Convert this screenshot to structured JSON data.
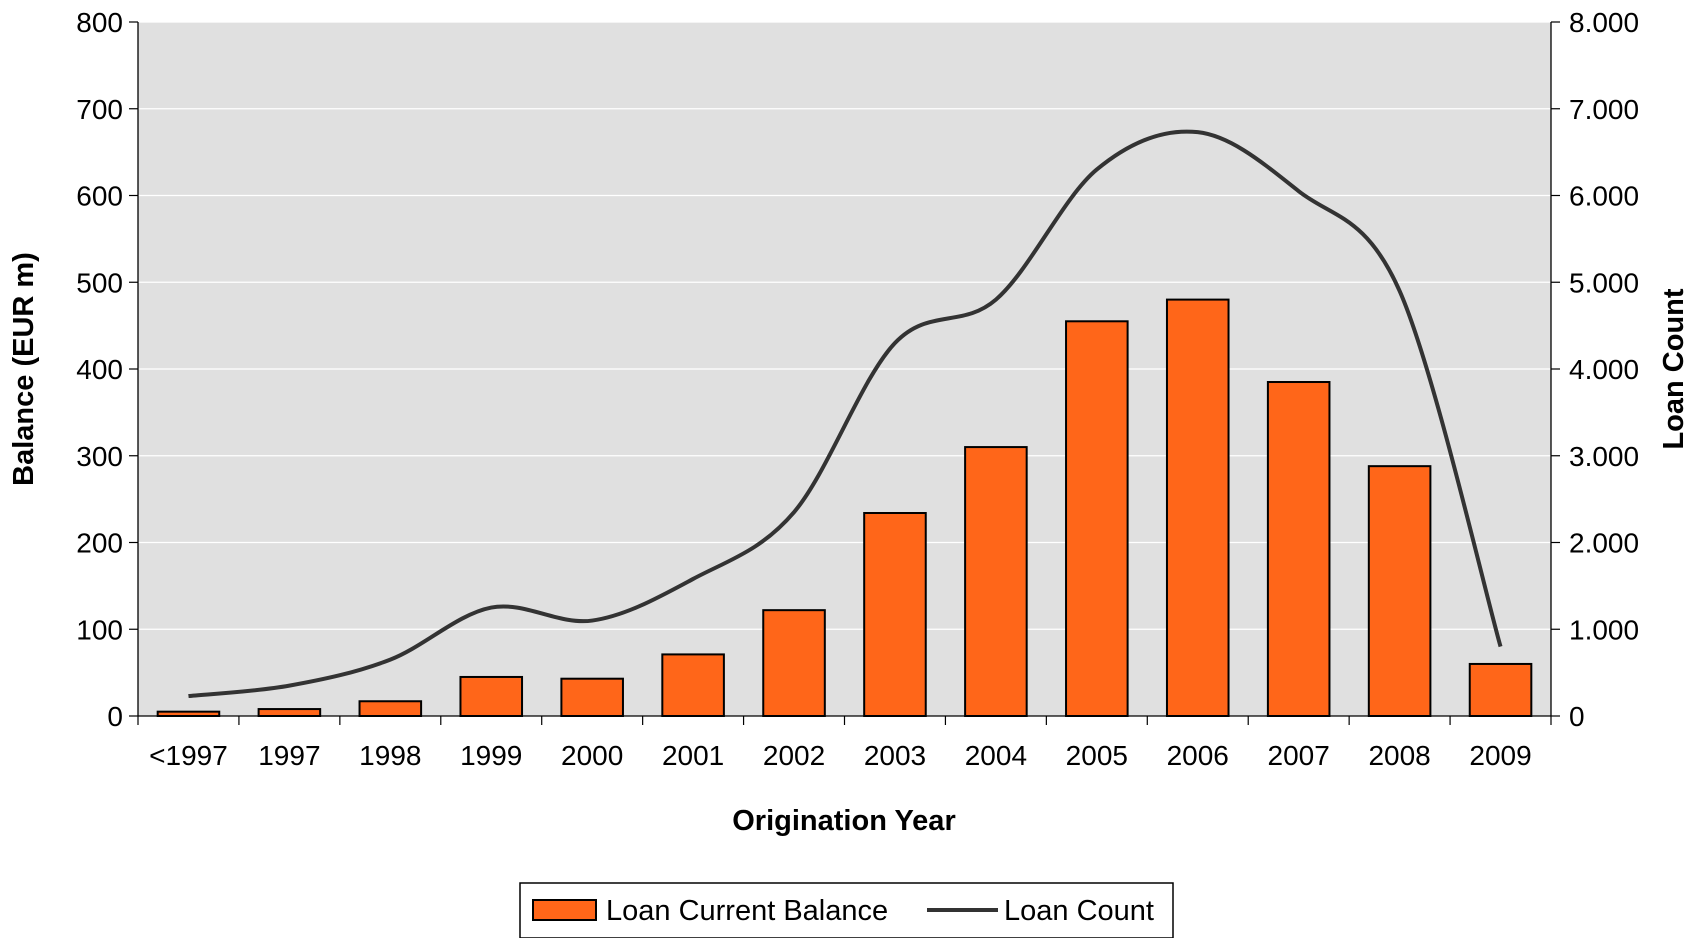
{
  "chart_data": {
    "type": "bar",
    "categories": [
      "<1997",
      "1997",
      "1998",
      "1999",
      "2000",
      "2001",
      "2002",
      "2003",
      "2004",
      "2005",
      "2006",
      "2007",
      "2008",
      "2009"
    ],
    "series": [
      {
        "name": "Loan Current Balance",
        "type": "bar",
        "axis": "left",
        "color": "#FF6619",
        "values": [
          5,
          8,
          17,
          45,
          43,
          71,
          122,
          234,
          310,
          455,
          480,
          385,
          288,
          60
        ]
      },
      {
        "name": "Loan Count",
        "type": "line",
        "axis": "right",
        "color": "#333333",
        "values": [
          230,
          350,
          650,
          1250,
          1100,
          1580,
          2350,
          4300,
          4800,
          6300,
          6730,
          6050,
          4900,
          800
        ]
      }
    ],
    "xlabel": "Origination Year",
    "ylabel": "Balance (EUR m)",
    "y2label": "Loan Count",
    "ylim": [
      0,
      800
    ],
    "y2lim": [
      0,
      8000
    ],
    "yticks": [
      "0",
      "100",
      "200",
      "300",
      "400",
      "500",
      "600",
      "700",
      "800"
    ],
    "y2ticks": [
      "0",
      "1.000",
      "2.000",
      "3.000",
      "4.000",
      "5.000",
      "6.000",
      "7.000",
      "8.000"
    ],
    "plot_background": "#E0E0E0",
    "grid": true,
    "legend_position": "bottom"
  }
}
